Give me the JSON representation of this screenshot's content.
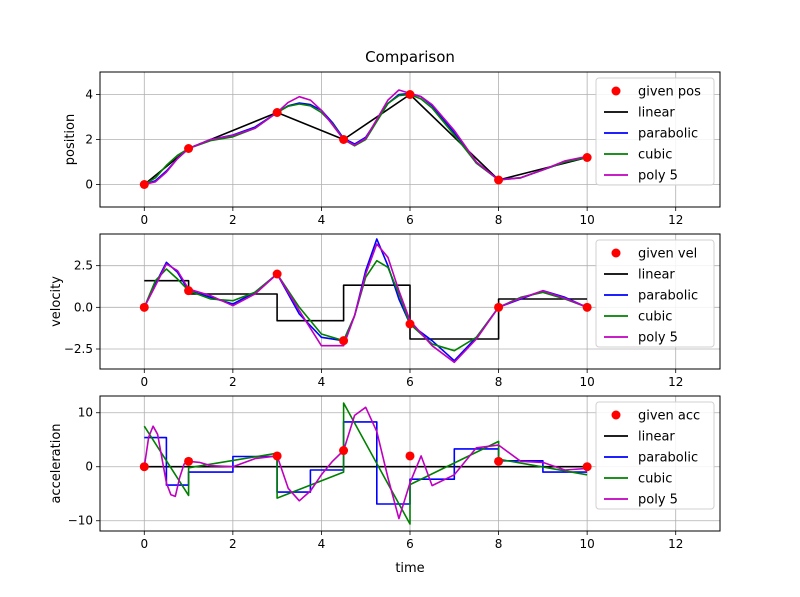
{
  "title": "Comparison",
  "xlabel": "time",
  "chart_data": [
    {
      "type": "line",
      "ylabel": "position",
      "xlim": [
        -1,
        13
      ],
      "ylim": [
        -1,
        5
      ],
      "xticks": [
        0,
        2,
        4,
        6,
        8,
        10,
        12
      ],
      "yticks": [
        0,
        2,
        4
      ],
      "ytick_labels": [
        "0",
        "2",
        "4"
      ],
      "grid": true,
      "legend": "top-right",
      "given": {
        "name": "given pos",
        "color": "#ff0000",
        "x": [
          0,
          1,
          3,
          4.5,
          6,
          8,
          10
        ],
        "y": [
          0,
          1.6,
          3.2,
          2.0,
          4.0,
          0.2,
          1.2
        ]
      },
      "series": [
        {
          "name": "linear",
          "color": "#000000",
          "x": [
            0,
            1,
            3,
            4.5,
            6,
            8,
            10
          ],
          "y": [
            0,
            1.6,
            3.2,
            2.0,
            4.0,
            0.2,
            1.2
          ]
        },
        {
          "name": "parabolic",
          "color": "#0000ff",
          "x": [
            0,
            0.25,
            0.5,
            0.75,
            1,
            1.5,
            2,
            2.5,
            3,
            3.25,
            3.5,
            3.75,
            4,
            4.25,
            4.5,
            4.75,
            5,
            5.25,
            5.5,
            5.75,
            6,
            6.25,
            6.5,
            7,
            7.5,
            8,
            8.5,
            9,
            9.5,
            10
          ],
          "y": [
            0,
            0.17,
            0.6,
            1.15,
            1.6,
            2.0,
            2.2,
            2.55,
            3.2,
            3.5,
            3.62,
            3.55,
            3.3,
            2.75,
            2.05,
            1.8,
            2.1,
            2.85,
            3.6,
            4.0,
            4.05,
            3.9,
            3.5,
            2.3,
            0.95,
            0.22,
            0.3,
            0.65,
            1.0,
            1.2
          ]
        },
        {
          "name": "cubic",
          "color": "#008000",
          "x": [
            0,
            0.25,
            0.5,
            0.75,
            1,
            1.5,
            2,
            2.5,
            3,
            3.25,
            3.5,
            3.75,
            4,
            4.25,
            4.5,
            4.75,
            5,
            5.25,
            5.5,
            5.75,
            6,
            6.25,
            6.5,
            7,
            7.5,
            8,
            8.5,
            9,
            9.5,
            10
          ],
          "y": [
            0,
            0.3,
            0.85,
            1.3,
            1.6,
            1.95,
            2.12,
            2.5,
            3.2,
            3.48,
            3.58,
            3.5,
            3.2,
            2.7,
            2.0,
            1.72,
            2.0,
            2.8,
            3.6,
            3.95,
            4.0,
            3.8,
            3.4,
            2.2,
            0.95,
            0.2,
            0.3,
            0.65,
            1.0,
            1.2
          ]
        },
        {
          "name": "poly 5",
          "color": "#bf00bf",
          "x": [
            0,
            0.25,
            0.5,
            0.75,
            1,
            1.5,
            2,
            2.5,
            3,
            3.25,
            3.5,
            3.75,
            4,
            4.25,
            4.5,
            4.75,
            5,
            5.25,
            5.5,
            5.75,
            6,
            6.25,
            6.5,
            7,
            7.5,
            8,
            8.5,
            9,
            9.5,
            10
          ],
          "y": [
            0,
            0.12,
            0.55,
            1.15,
            1.6,
            2.0,
            2.18,
            2.5,
            3.2,
            3.65,
            3.9,
            3.75,
            3.3,
            2.65,
            2.0,
            1.75,
            2.05,
            2.9,
            3.75,
            4.2,
            4.05,
            3.9,
            3.55,
            2.4,
            1.0,
            0.2,
            0.3,
            0.65,
            1.05,
            1.25
          ]
        }
      ]
    },
    {
      "type": "line",
      "ylabel": "velocity",
      "xlim": [
        -1,
        13
      ],
      "ylim": [
        -3.7,
        4.4
      ],
      "xticks": [
        0,
        2,
        4,
        6,
        8,
        10,
        12
      ],
      "yticks": [
        2.5,
        0,
        -2.5
      ],
      "ytick_labels": [
        "2.5",
        "0.0",
        "−2.5"
      ],
      "grid": true,
      "legend": "top-right",
      "given": {
        "name": "given vel",
        "color": "#ff0000",
        "x": [
          0,
          1,
          3,
          4.5,
          6,
          8,
          10
        ],
        "y": [
          0,
          1.0,
          2.0,
          -2.0,
          -1.0,
          0,
          0
        ]
      },
      "series": [
        {
          "name": "linear",
          "color": "#000000",
          "x": [
            0,
            1,
            1,
            3,
            3,
            4.5,
            4.5,
            6,
            6,
            8,
            8,
            10
          ],
          "y": [
            1.6,
            1.6,
            0.8,
            0.8,
            -0.8,
            -0.8,
            1.33,
            1.33,
            -1.9,
            -1.9,
            0.5,
            0.5
          ]
        },
        {
          "name": "parabolic",
          "color": "#0000ff",
          "x": [
            0,
            0.25,
            0.5,
            0.75,
            1,
            1.5,
            2,
            2.5,
            3,
            3.5,
            4,
            4.5,
            4.75,
            5,
            5.25,
            5.5,
            5.75,
            6,
            6.5,
            7,
            7.5,
            8,
            8.5,
            9,
            9.5,
            10
          ],
          "y": [
            0,
            1.4,
            2.7,
            2.1,
            1.0,
            0.6,
            0.2,
            0.9,
            2.0,
            -0.4,
            -1.8,
            -2.0,
            -0.5,
            2.2,
            4.1,
            2.5,
            0.5,
            -1.0,
            -2.0,
            -3.2,
            -1.8,
            0,
            0.5,
            1.0,
            0.6,
            0
          ]
        },
        {
          "name": "cubic",
          "color": "#008000",
          "x": [
            0,
            0.25,
            0.5,
            0.75,
            1,
            1.5,
            2,
            2.5,
            3,
            3.5,
            4,
            4.5,
            4.75,
            5,
            5.25,
            5.5,
            5.75,
            6,
            6.5,
            7,
            7.5,
            8,
            8.5,
            9,
            9.5,
            10
          ],
          "y": [
            0,
            1.6,
            2.3,
            1.7,
            1.0,
            0.5,
            0.4,
            0.9,
            2.0,
            0.0,
            -1.6,
            -2.0,
            -0.5,
            1.8,
            2.8,
            2.4,
            0.8,
            -1.0,
            -2.2,
            -2.6,
            -1.8,
            0,
            0.6,
            0.9,
            0.5,
            0
          ]
        },
        {
          "name": "poly 5",
          "color": "#bf00bf",
          "x": [
            0,
            0.25,
            0.5,
            0.75,
            1,
            1.5,
            2,
            2.5,
            3,
            3.5,
            4,
            4.5,
            4.75,
            5,
            5.25,
            5.5,
            5.75,
            6,
            6.5,
            7,
            7.5,
            8,
            8.5,
            9,
            9.5,
            10
          ],
          "y": [
            0,
            1.3,
            2.6,
            2.2,
            1.1,
            0.7,
            0.1,
            0.8,
            2.0,
            -0.2,
            -2.3,
            -2.3,
            -0.5,
            2.0,
            3.8,
            3.0,
            1.0,
            -0.8,
            -2.3,
            -3.3,
            -1.9,
            0,
            0.55,
            1.0,
            0.55,
            0
          ]
        }
      ]
    },
    {
      "type": "line",
      "ylabel": "acceleration",
      "xlim": [
        -1,
        13
      ],
      "ylim": [
        -11.9,
        13.1
      ],
      "xticks": [
        0,
        2,
        4,
        6,
        8,
        10,
        12
      ],
      "xtick_labels": [
        "0",
        "2",
        "4",
        "6",
        "8",
        "10",
        "12"
      ],
      "yticks": [
        10,
        0,
        -10
      ],
      "ytick_labels": [
        "10",
        "0",
        "−10"
      ],
      "grid": true,
      "legend": "top-right",
      "given": {
        "name": "given acc",
        "color": "#ff0000",
        "x": [
          0,
          1,
          3,
          4.5,
          6,
          8,
          10
        ],
        "y": [
          0,
          1.0,
          2.0,
          3.0,
          2.0,
          1.0,
          0
        ]
      },
      "series": [
        {
          "name": "linear",
          "color": "#000000",
          "x": [
            0,
            10
          ],
          "y": [
            0,
            0
          ]
        },
        {
          "name": "parabolic",
          "color": "#0000ff",
          "x": [
            0,
            0.5,
            0.5,
            1,
            1,
            2,
            2,
            3,
            3,
            3.75,
            3.75,
            4.5,
            4.5,
            5.25,
            5.25,
            6,
            6,
            7,
            7,
            8,
            8,
            9,
            9,
            10
          ],
          "y": [
            5.4,
            5.4,
            -3.4,
            -3.4,
            -1.0,
            -1.0,
            1.9,
            1.9,
            -4.7,
            -4.7,
            -0.6,
            -0.6,
            8.3,
            8.3,
            -6.9,
            -6.9,
            -2.3,
            -2.3,
            3.3,
            3.3,
            1.1,
            1.1,
            -1.0,
            -1.0
          ]
        },
        {
          "name": "cubic",
          "color": "#008000",
          "x": [
            0,
            1,
            1,
            3,
            3,
            4.5,
            4.5,
            6,
            6,
            8,
            8,
            10
          ],
          "y": [
            7.5,
            -5.3,
            -0.2,
            2.5,
            -5.8,
            -1.0,
            11.8,
            -10.6,
            -3.3,
            4.7,
            1.4,
            -1.5
          ]
        },
        {
          "name": "poly 5",
          "color": "#bf00bf",
          "x": [
            0,
            0.1,
            0.2,
            0.3,
            0.4,
            0.5,
            0.6,
            0.7,
            0.8,
            0.9,
            1.0,
            1.25,
            1.5,
            2,
            2.5,
            3,
            3.25,
            3.5,
            3.75,
            4,
            4.25,
            4.5,
            4.75,
            5,
            5.25,
            5.5,
            5.75,
            6,
            6.1,
            6.25,
            6.5,
            7,
            7.5,
            8,
            8.5,
            9,
            9.5,
            10
          ],
          "y": [
            0,
            5.5,
            7.5,
            6.0,
            1.5,
            -3.0,
            -5.2,
            -5.5,
            -2.0,
            0.5,
            1.0,
            0.8,
            0.2,
            0.0,
            1.5,
            2.0,
            -4.0,
            -6.3,
            -4.5,
            -1.5,
            1.0,
            3.0,
            9.5,
            11.0,
            6.5,
            -2.0,
            -9.6,
            -3.0,
            -1.0,
            2.0,
            -3.5,
            -1.5,
            3.5,
            4.0,
            1.0,
            0.8,
            -0.6,
            -0.3
          ]
        }
      ]
    }
  ]
}
